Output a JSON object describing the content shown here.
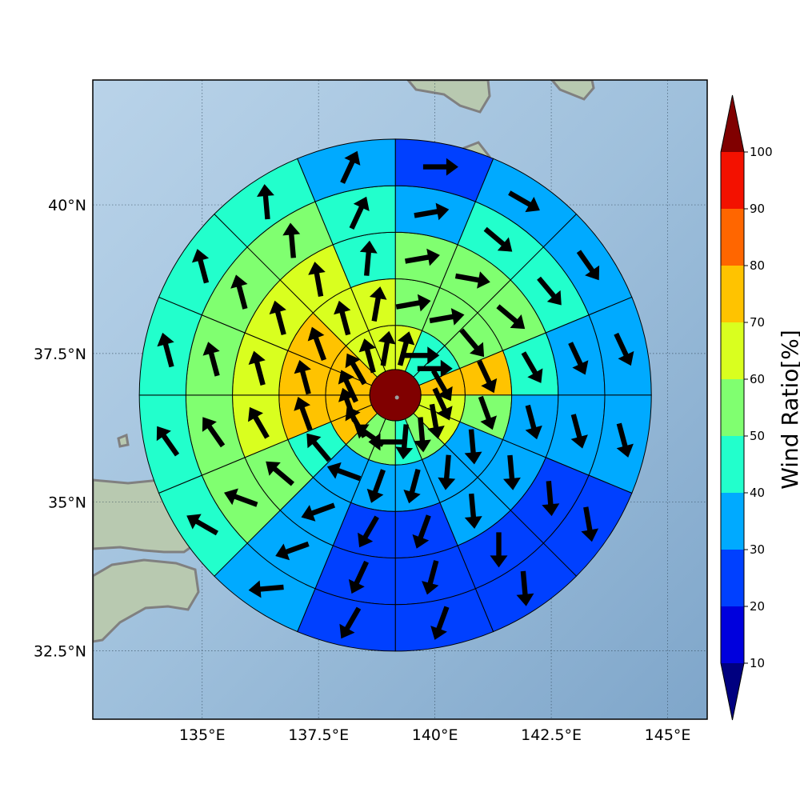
{
  "chart_data": {
    "type": "polar-sector-map",
    "map_extent": {
      "lon": [
        132.65,
        145.85
      ],
      "lat": [
        31.35,
        42.1
      ]
    },
    "grid": true,
    "x_ticks": [
      {
        "value": 135.0,
        "label": "135°E"
      },
      {
        "value": 137.5,
        "label": "137.5°E"
      },
      {
        "value": 140.0,
        "label": "140°E"
      },
      {
        "value": 142.5,
        "label": "142.5°E"
      },
      {
        "value": 145.0,
        "label": "145°E"
      }
    ],
    "y_ticks": [
      {
        "value": 32.5,
        "label": "32.5°N"
      },
      {
        "value": 35.0,
        "label": "35°N"
      },
      {
        "value": 37.5,
        "label": "37.5°N"
      },
      {
        "value": 40.0,
        "label": "40°N"
      }
    ],
    "center": {
      "lon": 139.15,
      "lat": 36.8
    },
    "center_value": 100,
    "ring_edges_deg": [
      0.55,
      1.5,
      2.5,
      3.5,
      4.5,
      5.5
    ],
    "sector_count": 16,
    "sector_order": "clockwise from north, 22.5 degrees each",
    "ring_values": [
      [
        67,
        45,
        45,
        75,
        65,
        65,
        55,
        45,
        55,
        55,
        75,
        75,
        75,
        75,
        65,
        65
      ],
      [
        55,
        55,
        55,
        75,
        55,
        35,
        35,
        35,
        35,
        35,
        45,
        75,
        75,
        75,
        65,
        65
      ],
      [
        55,
        55,
        55,
        45,
        35,
        35,
        35,
        25,
        25,
        35,
        55,
        65,
        65,
        65,
        65,
        45
      ],
      [
        35,
        45,
        45,
        35,
        35,
        25,
        25,
        25,
        25,
        35,
        55,
        55,
        55,
        55,
        55,
        45
      ],
      [
        25,
        35,
        35,
        35,
        35,
        25,
        25,
        25,
        25,
        35,
        45,
        45,
        45,
        45,
        45,
        35
      ]
    ],
    "ring_wind_dir_deg": [
      [
        15,
        90,
        90,
        150,
        155,
        170,
        175,
        185,
        270,
        305,
        330,
        340,
        335,
        330,
        345,
        10
      ],
      [
        80,
        80,
        140,
        155,
        160,
        175,
        185,
        195,
        200,
        290,
        320,
        340,
        345,
        340,
        345,
        10
      ],
      [
        80,
        100,
        130,
        150,
        165,
        175,
        175,
        200,
        210,
        250,
        310,
        330,
        345,
        345,
        350,
        5
      ],
      [
        80,
        130,
        140,
        155,
        165,
        175,
        180,
        195,
        205,
        250,
        290,
        325,
        345,
        345,
        355,
        25
      ],
      [
        90,
        120,
        145,
        155,
        165,
        170,
        175,
        200,
        210,
        265,
        300,
        325,
        345,
        345,
        355,
        25
      ]
    ],
    "colorbar": {
      "title": "Wind Ratio[%]",
      "levels": [
        10,
        20,
        30,
        40,
        50,
        60,
        70,
        80,
        90,
        100
      ],
      "colors": [
        "#0000DD",
        "#0040FF",
        "#00AAFF",
        "#22FFCC",
        "#80FF70",
        "#D9FF1F",
        "#FFC300",
        "#FF6600",
        "#F31100"
      ],
      "under_color": "#000080",
      "over_color": "#800000",
      "extend": "both"
    }
  },
  "colors": {
    "ocean": "#9ABBD8",
    "land": "#B8C9B0",
    "coastline": "#808080",
    "arrow": "#000000",
    "gridline": "#2E4456"
  }
}
